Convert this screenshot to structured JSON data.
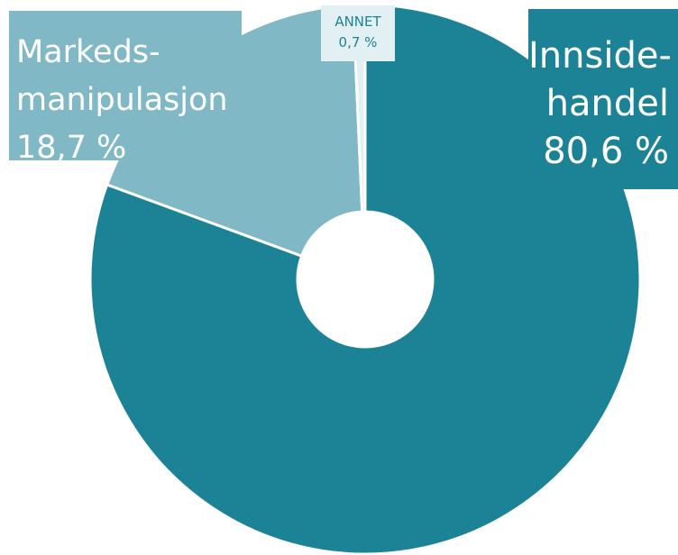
{
  "chart_data": {
    "type": "pie",
    "variant": "donut",
    "categories": [
      "Innsidehandel",
      "Markedsmanipulasjon",
      "ANNET"
    ],
    "values": [
      80.6,
      18.7,
      0.7
    ],
    "unit": "%",
    "colors": [
      "#1c8397",
      "#80b9c5",
      "#e3f0f3"
    ],
    "labels": [
      {
        "lines": [
          "Innside-",
          "handel",
          "80,6 %"
        ]
      },
      {
        "lines": [
          "Markeds-",
          "manipulasjon",
          "18,7 %"
        ]
      },
      {
        "lines": [
          "ANNET",
          "0,7 %"
        ]
      }
    ],
    "legend": "none",
    "grid": false
  }
}
